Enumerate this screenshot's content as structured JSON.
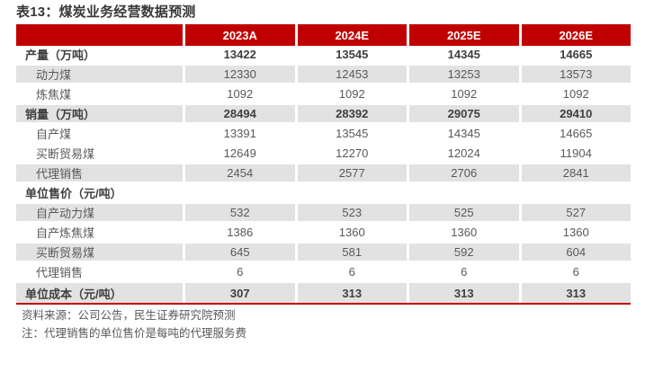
{
  "title": "表13：煤炭业务经营数据预测",
  "colors": {
    "accent_red": "#c00000",
    "row_shade": "#e2e2e2",
    "header_text": "#ffffff",
    "body_text": "#595959",
    "section_text": "#3f3f3f"
  },
  "table": {
    "columns": [
      "",
      "2023A",
      "2024E",
      "2025E",
      "2026E"
    ],
    "rows": [
      {
        "label": "产量（万吨）",
        "values": [
          "13422",
          "13545",
          "14345",
          "14665"
        ],
        "section": true,
        "indent": false,
        "shaded": false
      },
      {
        "label": "动力煤",
        "values": [
          "12330",
          "12453",
          "13253",
          "13573"
        ],
        "section": false,
        "indent": true,
        "shaded": true
      },
      {
        "label": "炼焦煤",
        "values": [
          "1092",
          "1092",
          "1092",
          "1092"
        ],
        "section": false,
        "indent": true,
        "shaded": false
      },
      {
        "label": "销量（万吨）",
        "values": [
          "28494",
          "28392",
          "29075",
          "29410"
        ],
        "section": true,
        "indent": false,
        "shaded": true
      },
      {
        "label": "自产煤",
        "values": [
          "13391",
          "13545",
          "14345",
          "14665"
        ],
        "section": false,
        "indent": true,
        "shaded": false
      },
      {
        "label": "买断贸易煤",
        "values": [
          "12649",
          "12270",
          "12024",
          "11904"
        ],
        "section": false,
        "indent": true,
        "shaded": false
      },
      {
        "label": "代理销售",
        "values": [
          "2454",
          "2577",
          "2706",
          "2841"
        ],
        "section": false,
        "indent": true,
        "shaded": true
      },
      {
        "label": "单位售价（元/吨）",
        "values": [
          "",
          "",
          "",
          ""
        ],
        "section": true,
        "indent": false,
        "shaded": false
      },
      {
        "label": "自产动力煤",
        "values": [
          "532",
          "523",
          "525",
          "527"
        ],
        "section": false,
        "indent": true,
        "shaded": true
      },
      {
        "label": "自产炼焦煤",
        "values": [
          "1386",
          "1360",
          "1360",
          "1360"
        ],
        "section": false,
        "indent": true,
        "shaded": false
      },
      {
        "label": "买断贸易煤",
        "values": [
          "645",
          "581",
          "592",
          "604"
        ],
        "section": false,
        "indent": true,
        "shaded": true
      },
      {
        "label": "代理销售",
        "values": [
          "6",
          "6",
          "6",
          "6"
        ],
        "section": false,
        "indent": true,
        "shaded": false
      },
      {
        "label": "单位成本（元/吨）",
        "values": [
          "307",
          "313",
          "313",
          "313"
        ],
        "section": true,
        "indent": false,
        "shaded": true
      }
    ]
  },
  "footer": {
    "source": "资料来源：公司公告，民生证券研究院预测",
    "note": "注：代理销售的单位售价是每吨的代理服务费"
  }
}
